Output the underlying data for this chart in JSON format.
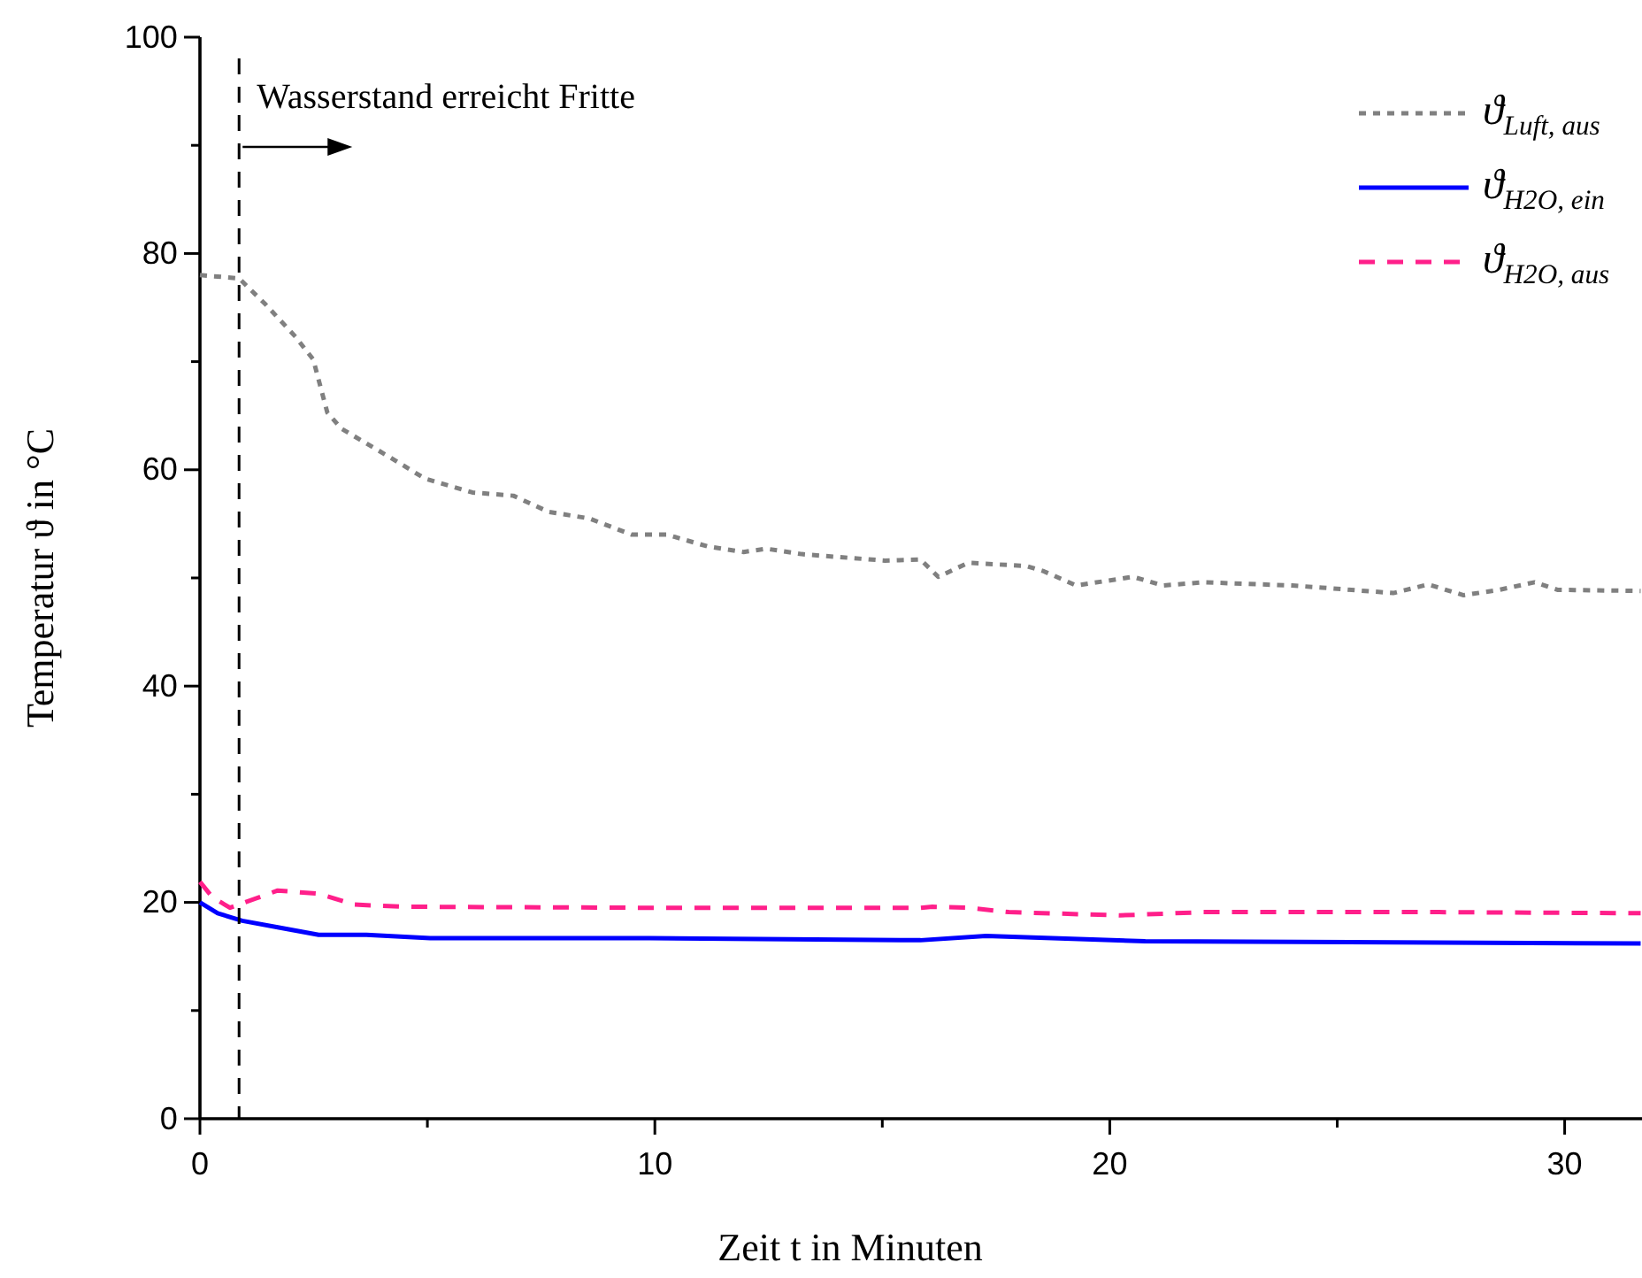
{
  "chart_data": {
    "type": "line",
    "xlabel": "Zeit t in Minuten",
    "ylabel": "Temperatur ϑ in °C",
    "xlim": [
      0,
      31.7
    ],
    "ylim": [
      0,
      100
    ],
    "xticks": [
      0,
      {
        "value": 5,
        "label": null
      },
      10,
      {
        "value": 15,
        "label": null
      },
      20,
      {
        "value": 25,
        "label": null
      },
      30
    ],
    "yticks": [
      0,
      {
        "value": 10,
        "label": null
      },
      20,
      {
        "value": 30,
        "label": null
      },
      40,
      {
        "value": 50,
        "label": null
      },
      60,
      {
        "value": 70,
        "label": null
      },
      80,
      {
        "value": 90,
        "label": null
      },
      100
    ],
    "grid": false,
    "legend": "top right",
    "ref_lines": [
      {
        "axis": "x",
        "value": 0.86,
        "label": "Wasserstand erreicht Fritte",
        "color": "#000000",
        "line_style": "dashed"
      }
    ],
    "series": [
      {
        "name": "ϑ$_{Luft, aus}$",
        "color": "#808080",
        "line_style": "dotted",
        "x": [
          0,
          0.86,
          1.44,
          2.1,
          2.49,
          2.8,
          3.11,
          4.16,
          4.94,
          5.99,
          6.89,
          7.67,
          8.56,
          9.49,
          10.27,
          11.17,
          11.95,
          12.45,
          13.23,
          15.06,
          15.84,
          16.23,
          16.89,
          18.17,
          18.56,
          19.26,
          20.51,
          21.17,
          22.06,
          24.01,
          24.67,
          26.23,
          27.0,
          27.78,
          28.56,
          29.34,
          29.84,
          31.67
        ],
        "values": [
          78,
          77.7,
          75.3,
          72.3,
          70.2,
          65.3,
          63.8,
          61.2,
          59.2,
          57.9,
          57.6,
          56.1,
          55.5,
          54,
          54,
          52.9,
          52.4,
          52.7,
          52.2,
          51.6,
          51.7,
          50.1,
          51.4,
          51.1,
          50.6,
          49.3,
          50.1,
          49.3,
          49.6,
          49.3,
          49.1,
          48.6,
          49.4,
          48.4,
          48.9,
          49.6,
          48.9,
          48.8
        ]
      },
      {
        "name": "ϑ$_{H2O, ein}$",
        "color": "#0000ff",
        "line_style": "solid",
        "x": [
          0,
          0.39,
          0.93,
          1.71,
          2.61,
          3.66,
          5.06,
          9.88,
          15.84,
          17.28,
          20.78,
          31.67
        ],
        "values": [
          20,
          19,
          18.3,
          17.7,
          17,
          17,
          16.7,
          16.7,
          16.5,
          16.9,
          16.4,
          16.2
        ]
      },
      {
        "name": "ϑ$_{H2O, aus}$",
        "color": "#ff1f8a",
        "line_style": "dashed",
        "x": [
          0,
          0.27,
          0.66,
          1.71,
          2.61,
          3.39,
          4.44,
          9.88,
          12.45,
          15.84,
          16.1,
          16.89,
          17.78,
          20.23,
          22.06,
          27.24,
          31.67
        ],
        "values": [
          21.9,
          20.5,
          19.5,
          21.1,
          20.8,
          19.8,
          19.6,
          19.5,
          19.5,
          19.5,
          19.6,
          19.5,
          19.1,
          18.8,
          19.1,
          19.1,
          19
        ]
      }
    ]
  }
}
